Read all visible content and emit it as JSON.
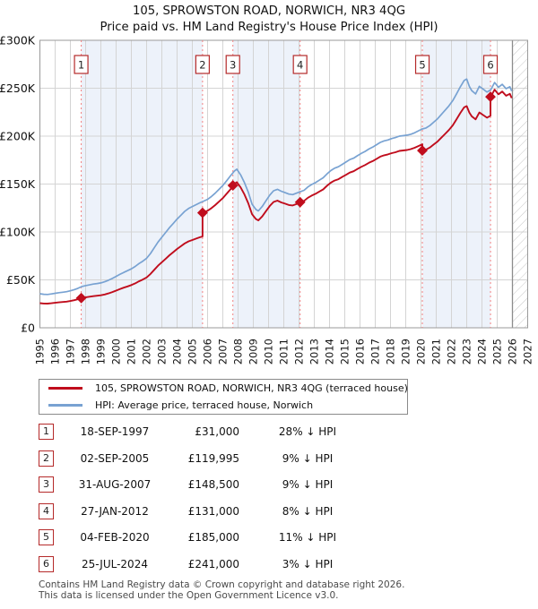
{
  "title": {
    "line1": "105, SPROWSTON ROAD, NORWICH, NR3 4QG",
    "line2": "Price paid vs. HM Land Registry's House Price Index (HPI)"
  },
  "legend": {
    "items": [
      {
        "label": "105, SPROWSTON ROAD, NORWICH, NR3 4QG (terraced house)",
        "color": "#c00d1d"
      },
      {
        "label": "HPI: Average price, terraced house, Norwich",
        "color": "#78a2d2"
      }
    ]
  },
  "chart_data": {
    "type": "line",
    "title": "105, SPROWSTON ROAD, NORWICH, NR3 4QG — Price paid vs. HM Land Registry's House Price Index (HPI)",
    "xlabel": "",
    "ylabel": "",
    "xlim": [
      1995,
      2027
    ],
    "ylim": [
      0,
      300000
    ],
    "grid": true,
    "legend_position": "below",
    "xticks": [
      1995,
      1996,
      1997,
      1998,
      1999,
      2000,
      2001,
      2002,
      2003,
      2004,
      2005,
      2006,
      2007,
      2008,
      2009,
      2010,
      2011,
      2012,
      2013,
      2014,
      2015,
      2016,
      2017,
      2018,
      2019,
      2020,
      2021,
      2022,
      2023,
      2024,
      2025,
      2026,
      2027
    ],
    "yticks": [
      {
        "v": 0,
        "label": "£0"
      },
      {
        "v": 50000,
        "label": "£50K"
      },
      {
        "v": 100000,
        "label": "£100K"
      },
      {
        "v": 150000,
        "label": "£150K"
      },
      {
        "v": 200000,
        "label": "£200K"
      },
      {
        "v": 250000,
        "label": "£250K"
      },
      {
        "v": 300000,
        "label": "£300K"
      }
    ],
    "hatch_future_from": 2026,
    "data_end_year": 2025.95,
    "style": {
      "price_color": "#c00d1d",
      "hpi_color": "#78a2d2",
      "band_fill": "#edf2fa",
      "grid_color": "#d4d4d4",
      "border_color": "#9a9a9a",
      "sale_line_color": "#f28080",
      "marker_box_border": "#b52a2a",
      "hatch_color": "#c8c8c8"
    },
    "series": [
      {
        "name": "105, SPROWSTON ROAD, NORWICH, NR3 4QG (terraced house)",
        "color": "#c00d1d",
        "derived": "price paid scaled by HPI between sales"
      },
      {
        "name": "HPI: Average price, terraced house, Norwich",
        "color": "#78a2d2",
        "points": [
          [
            1995.0,
            35500
          ],
          [
            1995.25,
            35000
          ],
          [
            1995.5,
            34800
          ],
          [
            1995.75,
            35300
          ],
          [
            1996.0,
            36000
          ],
          [
            1996.25,
            36600
          ],
          [
            1996.5,
            37100
          ],
          [
            1996.75,
            37700
          ],
          [
            1997.0,
            38600
          ],
          [
            1997.25,
            39800
          ],
          [
            1997.5,
            41200
          ],
          [
            1997.75,
            43100
          ],
          [
            1998.0,
            44000
          ],
          [
            1998.25,
            44800
          ],
          [
            1998.5,
            45600
          ],
          [
            1998.75,
            46200
          ],
          [
            1999.0,
            46800
          ],
          [
            1999.25,
            48000
          ],
          [
            1999.5,
            49600
          ],
          [
            1999.75,
            51500
          ],
          [
            2000.0,
            53600
          ],
          [
            2000.25,
            55800
          ],
          [
            2000.5,
            57800
          ],
          [
            2000.75,
            59600
          ],
          [
            2001.0,
            61500
          ],
          [
            2001.25,
            64000
          ],
          [
            2001.5,
            67000
          ],
          [
            2001.75,
            69500
          ],
          [
            2002.0,
            72500
          ],
          [
            2002.25,
            77500
          ],
          [
            2002.5,
            83500
          ],
          [
            2002.75,
            89500
          ],
          [
            2003.0,
            94500
          ],
          [
            2003.25,
            99500
          ],
          [
            2003.5,
            104500
          ],
          [
            2003.75,
            109000
          ],
          [
            2004.0,
            113500
          ],
          [
            2004.25,
            117500
          ],
          [
            2004.5,
            121500
          ],
          [
            2004.75,
            124500
          ],
          [
            2005.0,
            126500
          ],
          [
            2005.25,
            128500
          ],
          [
            2005.5,
            130500
          ],
          [
            2005.75,
            132200
          ],
          [
            2006.0,
            134000
          ],
          [
            2006.25,
            137000
          ],
          [
            2006.5,
            140500
          ],
          [
            2006.75,
            144500
          ],
          [
            2007.0,
            148500
          ],
          [
            2007.25,
            153500
          ],
          [
            2007.5,
            158500
          ],
          [
            2007.75,
            163500
          ],
          [
            2007.92,
            165500
          ],
          [
            2008.17,
            159500
          ],
          [
            2008.42,
            151500
          ],
          [
            2008.67,
            141500
          ],
          [
            2008.92,
            129000
          ],
          [
            2009.17,
            123500
          ],
          [
            2009.33,
            122000
          ],
          [
            2009.58,
            126500
          ],
          [
            2009.83,
            132500
          ],
          [
            2010.08,
            138500
          ],
          [
            2010.33,
            143000
          ],
          [
            2010.58,
            144500
          ],
          [
            2010.83,
            142500
          ],
          [
            2011.08,
            141000
          ],
          [
            2011.33,
            139500
          ],
          [
            2011.58,
            139000
          ],
          [
            2011.83,
            140500
          ],
          [
            2012.08,
            142000
          ],
          [
            2012.33,
            143500
          ],
          [
            2012.58,
            147000
          ],
          [
            2012.83,
            149500
          ],
          [
            2013.08,
            151500
          ],
          [
            2013.33,
            154000
          ],
          [
            2013.58,
            156500
          ],
          [
            2013.83,
            160500
          ],
          [
            2014.08,
            164000
          ],
          [
            2014.33,
            166500
          ],
          [
            2014.58,
            168000
          ],
          [
            2014.83,
            170500
          ],
          [
            2015.08,
            173000
          ],
          [
            2015.33,
            175500
          ],
          [
            2015.58,
            177000
          ],
          [
            2015.83,
            179500
          ],
          [
            2016.08,
            182000
          ],
          [
            2016.33,
            184000
          ],
          [
            2016.58,
            186500
          ],
          [
            2016.83,
            188500
          ],
          [
            2017.08,
            191000
          ],
          [
            2017.33,
            193500
          ],
          [
            2017.58,
            195000
          ],
          [
            2017.83,
            196000
          ],
          [
            2018.08,
            197500
          ],
          [
            2018.33,
            198500
          ],
          [
            2018.58,
            200000
          ],
          [
            2018.83,
            200500
          ],
          [
            2019.08,
            201000
          ],
          [
            2019.33,
            202000
          ],
          [
            2019.58,
            203500
          ],
          [
            2019.83,
            205500
          ],
          [
            2020.08,
            207500
          ],
          [
            2020.33,
            208500
          ],
          [
            2020.58,
            211000
          ],
          [
            2020.83,
            214500
          ],
          [
            2021.08,
            218000
          ],
          [
            2021.33,
            222500
          ],
          [
            2021.58,
            227000
          ],
          [
            2021.83,
            231500
          ],
          [
            2022.08,
            237000
          ],
          [
            2022.33,
            244000
          ],
          [
            2022.58,
            251500
          ],
          [
            2022.83,
            258000
          ],
          [
            2023.0,
            259500
          ],
          [
            2023.17,
            252000
          ],
          [
            2023.33,
            247500
          ],
          [
            2023.58,
            244000
          ],
          [
            2023.83,
            252000
          ],
          [
            2024.08,
            249000
          ],
          [
            2024.33,
            246000
          ],
          [
            2024.58,
            248500
          ],
          [
            2024.83,
            256000
          ],
          [
            2025.08,
            251000
          ],
          [
            2025.33,
            254000
          ],
          [
            2025.58,
            249500
          ],
          [
            2025.83,
            251500
          ],
          [
            2025.95,
            247000
          ]
        ]
      }
    ],
    "sales": [
      {
        "n": "1",
        "date": "18-SEP-1997",
        "year": 1997.71,
        "price": 31000,
        "price_label": "£31,000",
        "pct": "28% ↓ HPI"
      },
      {
        "n": "2",
        "date": "02-SEP-2005",
        "year": 2005.67,
        "price": 119995,
        "price_label": "£119,995",
        "pct": "9% ↓ HPI"
      },
      {
        "n": "3",
        "date": "31-AUG-2007",
        "year": 2007.66,
        "price": 148500,
        "price_label": "£148,500",
        "pct": "9% ↓ HPI"
      },
      {
        "n": "4",
        "date": "27-JAN-2012",
        "year": 2012.07,
        "price": 131000,
        "price_label": "£131,000",
        "pct": "8% ↓ HPI"
      },
      {
        "n": "5",
        "date": "04-FEB-2020",
        "year": 2020.09,
        "price": 185000,
        "price_label": "£185,000",
        "pct": "11% ↓ HPI"
      },
      {
        "n": "6",
        "date": "25-JUL-2024",
        "year": 2024.56,
        "price": 241000,
        "price_label": "£241,000",
        "pct": "3% ↓ HPI"
      }
    ]
  },
  "table": {
    "rows": [
      {
        "num": "1",
        "date": "18-SEP-1997",
        "price": "£31,000",
        "pct": "28% ↓ HPI"
      },
      {
        "num": "2",
        "date": "02-SEP-2005",
        "price": "£119,995",
        "pct": "9% ↓ HPI"
      },
      {
        "num": "3",
        "date": "31-AUG-2007",
        "price": "£148,500",
        "pct": "9% ↓ HPI"
      },
      {
        "num": "4",
        "date": "27-JAN-2012",
        "price": "£131,000",
        "pct": "8% ↓ HPI"
      },
      {
        "num": "5",
        "date": "04-FEB-2020",
        "price": "£185,000",
        "pct": "11% ↓ HPI"
      },
      {
        "num": "6",
        "date": "25-JUL-2024",
        "price": "£241,000",
        "pct": "3% ↓ HPI"
      }
    ]
  },
  "footer": {
    "line1": "Contains HM Land Registry data © Crown copyright and database right 2026.",
    "line2": "This data is licensed under the Open Government Licence v3.0."
  }
}
